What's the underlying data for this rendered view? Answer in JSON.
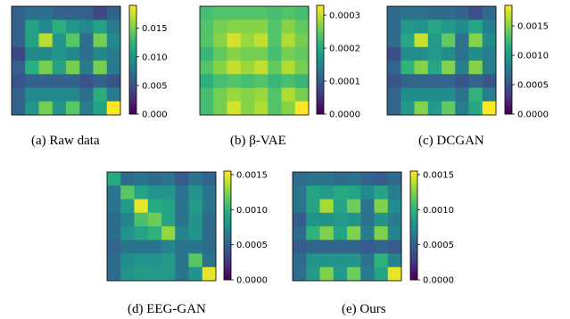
{
  "figure": {
    "panels": [
      {
        "caption": "(a) Raw data",
        "chart_data": {
          "type": "heatmap",
          "colormap": "viridis",
          "vmin": 0.0,
          "vmax": 0.019,
          "colorbar_ticks": [
            0.0,
            0.005,
            0.01,
            0.015
          ],
          "colorbar_tick_labels": [
            "0.000",
            "0.005",
            "0.010",
            "0.015"
          ],
          "values": [
            [
              0.006,
              0.007,
              0.007,
              0.006,
              0.006,
              0.006,
              0.004,
              0.006
            ],
            [
              0.006,
              0.011,
              0.009,
              0.012,
              0.01,
              0.009,
              0.011,
              0.008
            ],
            [
              0.006,
              0.011,
              0.017,
              0.01,
              0.014,
              0.007,
              0.015,
              0.009
            ],
            [
              0.004,
              0.009,
              0.009,
              0.01,
              0.009,
              0.007,
              0.009,
              0.008
            ],
            [
              0.006,
              0.012,
              0.015,
              0.011,
              0.015,
              0.008,
              0.015,
              0.008
            ],
            [
              0.005,
              0.006,
              0.006,
              0.006,
              0.006,
              0.005,
              0.006,
              0.005
            ],
            [
              0.006,
              0.009,
              0.009,
              0.009,
              0.009,
              0.007,
              0.012,
              0.008
            ],
            [
              0.006,
              0.01,
              0.015,
              0.01,
              0.014,
              0.008,
              0.011,
              0.019
            ]
          ]
        }
      },
      {
        "caption": "(b) β-VAE",
        "chart_data": {
          "type": "heatmap",
          "colormap": "viridis",
          "vmin": 0.0,
          "vmax": 0.00033,
          "colorbar_ticks": [
            0.0,
            0.0001,
            0.0002,
            0.0003
          ],
          "colorbar_tick_labels": [
            "0.0000",
            "0.0001",
            "0.0002",
            "0.0003"
          ],
          "values": [
            [
              0.00023,
              0.00024,
              0.00024,
              0.00024,
              0.00024,
              0.00023,
              0.00024,
              0.00023
            ],
            [
              0.00024,
              0.00026,
              0.00027,
              0.00027,
              0.00027,
              0.00024,
              0.00027,
              0.00025
            ],
            [
              0.00024,
              0.00027,
              0.00031,
              0.00028,
              0.0003,
              0.00024,
              0.00029,
              0.00026
            ],
            [
              0.00022,
              0.00025,
              0.00027,
              0.00026,
              0.00026,
              0.00023,
              0.00026,
              0.00025
            ],
            [
              0.00024,
              0.00027,
              0.0003,
              0.00028,
              0.0003,
              0.00025,
              0.00029,
              0.00026
            ],
            [
              0.00021,
              0.00023,
              0.00024,
              0.00023,
              0.00024,
              0.00022,
              0.00023,
              0.00022
            ],
            [
              0.00023,
              0.00026,
              0.00028,
              0.00027,
              0.00028,
              0.00024,
              0.00029,
              0.00026
            ],
            [
              0.00023,
              0.00026,
              0.00031,
              0.00027,
              0.00029,
              0.00024,
              0.00027,
              0.00033
            ]
          ]
        }
      },
      {
        "caption": "(c) DCGAN",
        "chart_data": {
          "type": "heatmap",
          "colormap": "viridis",
          "vmin": 0.0,
          "vmax": 0.00185,
          "colorbar_ticks": [
            0.0,
            0.0005,
            0.001,
            0.0015
          ],
          "colorbar_tick_labels": [
            "0.0000",
            "0.0005",
            "0.0010",
            "0.0015"
          ],
          "values": [
            [
              0.00065,
              0.0007,
              0.0007,
              0.00065,
              0.00065,
              0.0006,
              0.00045,
              0.00065
            ],
            [
              0.00065,
              0.001,
              0.00095,
              0.0011,
              0.001,
              0.0009,
              0.0011,
              0.0008
            ],
            [
              0.00065,
              0.0011,
              0.0017,
              0.001,
              0.0014,
              0.0007,
              0.0015,
              0.0009
            ],
            [
              0.00045,
              0.0009,
              0.0009,
              0.001,
              0.0009,
              0.0007,
              0.0009,
              0.0008
            ],
            [
              0.0006,
              0.0012,
              0.0015,
              0.0011,
              0.0015,
              0.0008,
              0.0015,
              0.0008
            ],
            [
              0.0005,
              0.0006,
              0.0006,
              0.0006,
              0.0006,
              0.0005,
              0.0006,
              0.0005
            ],
            [
              0.0006,
              0.0009,
              0.0009,
              0.0009,
              0.0009,
              0.0007,
              0.0012,
              0.0008
            ],
            [
              0.0006,
              0.001,
              0.0015,
              0.001,
              0.0014,
              0.0008,
              0.0011,
              0.00185
            ]
          ]
        }
      },
      {
        "caption": "(d) EEG-GAN",
        "chart_data": {
          "type": "heatmap",
          "colormap": "viridis",
          "vmin": 0.0,
          "vmax": 0.00155,
          "colorbar_ticks": [
            0.0,
            0.0005,
            0.001,
            0.0015
          ],
          "colorbar_tick_labels": [
            "0.0000",
            "0.0005",
            "0.0010",
            "0.0015"
          ],
          "values": [
            [
              0.00095,
              0.00055,
              0.0006,
              0.00055,
              0.0006,
              0.00045,
              0.0006,
              0.0005
            ],
            [
              0.0006,
              0.00115,
              0.0009,
              0.0008,
              0.0008,
              0.0006,
              0.0008,
              0.0006
            ],
            [
              0.0006,
              0.00085,
              0.0015,
              0.00095,
              0.0009,
              0.0006,
              0.00085,
              0.0006
            ],
            [
              0.00055,
              0.0007,
              0.0011,
              0.0012,
              0.0009,
              0.0006,
              0.0008,
              0.00055
            ],
            [
              0.00055,
              0.0008,
              0.0009,
              0.001,
              0.0013,
              0.0007,
              0.0008,
              0.00055
            ],
            [
              0.0005,
              0.0006,
              0.0006,
              0.0006,
              0.0007,
              0.0006,
              0.0006,
              0.00055
            ],
            [
              0.00055,
              0.00075,
              0.0008,
              0.0008,
              0.00085,
              0.0006,
              0.00115,
              0.0006
            ],
            [
              0.00055,
              0.0008,
              0.00085,
              0.00085,
              0.00085,
              0.0006,
              0.0008,
              0.0015
            ]
          ]
        }
      },
      {
        "caption": "(e) Ours",
        "chart_data": {
          "type": "heatmap",
          "colormap": "viridis",
          "vmin": 0.0,
          "vmax": 0.00155,
          "colorbar_ticks": [
            0.0,
            0.0005,
            0.001,
            0.0015
          ],
          "colorbar_tick_labels": [
            "0.0000",
            "0.0005",
            "0.0010",
            "0.0015"
          ],
          "values": [
            [
              0.00055,
              0.0006,
              0.0006,
              0.00055,
              0.0006,
              0.0005,
              0.00045,
              0.00055
            ],
            [
              0.0006,
              0.0009,
              0.00085,
              0.00095,
              0.0009,
              0.00075,
              0.0009,
              0.00065
            ],
            [
              0.0006,
              0.0009,
              0.00135,
              0.0009,
              0.0012,
              0.0006,
              0.00125,
              0.00075
            ],
            [
              0.00045,
              0.0008,
              0.0008,
              0.00085,
              0.0008,
              0.0006,
              0.0008,
              0.00065
            ],
            [
              0.00055,
              0.001,
              0.00125,
              0.0009,
              0.00125,
              0.00065,
              0.00125,
              0.0007
            ],
            [
              0.00045,
              0.0005,
              0.0005,
              0.0005,
              0.0005,
              0.00045,
              0.0005,
              0.00045
            ],
            [
              0.00055,
              0.0008,
              0.0008,
              0.0008,
              0.0008,
              0.0006,
              0.001,
              0.0007
            ],
            [
              0.00055,
              0.00085,
              0.00125,
              0.00085,
              0.0012,
              0.00065,
              0.0009,
              0.0015
            ]
          ]
        }
      }
    ]
  }
}
